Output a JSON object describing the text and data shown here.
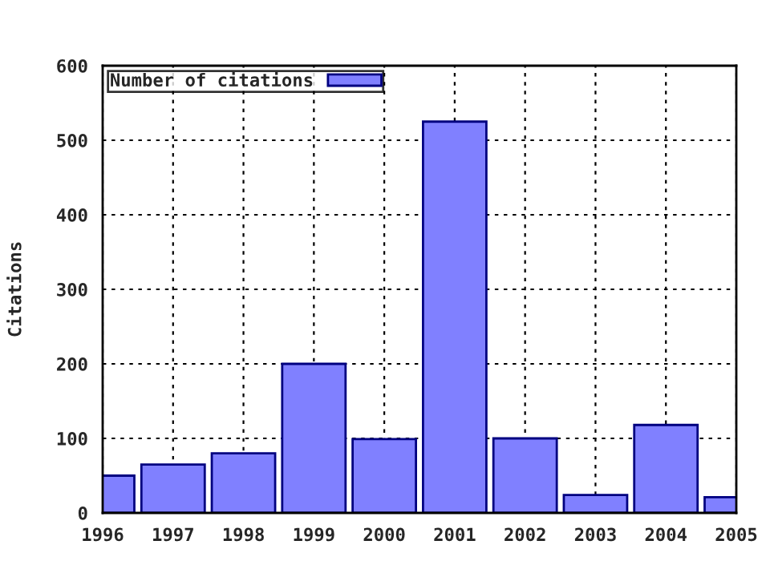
{
  "chart_data": {
    "type": "bar",
    "ylabel": "Citations",
    "x": [
      1996,
      1997,
      1998,
      1999,
      2000,
      2001,
      2002,
      2003,
      2004,
      2005
    ],
    "series": [
      {
        "name": "Number of citations",
        "color": "#8080ff",
        "values": [
          50,
          65,
          80,
          200,
          99,
          525,
          100,
          24,
          118,
          21
        ]
      }
    ],
    "xlim": [
      1996,
      2005
    ],
    "xticks": [
      1996,
      1997,
      1998,
      1999,
      2000,
      2001,
      2002,
      2003,
      2004,
      2005
    ],
    "ylim": [
      0,
      600
    ],
    "yticks": [
      0,
      100,
      200,
      300,
      400,
      500,
      600
    ],
    "grid": true,
    "legend": "top left"
  }
}
